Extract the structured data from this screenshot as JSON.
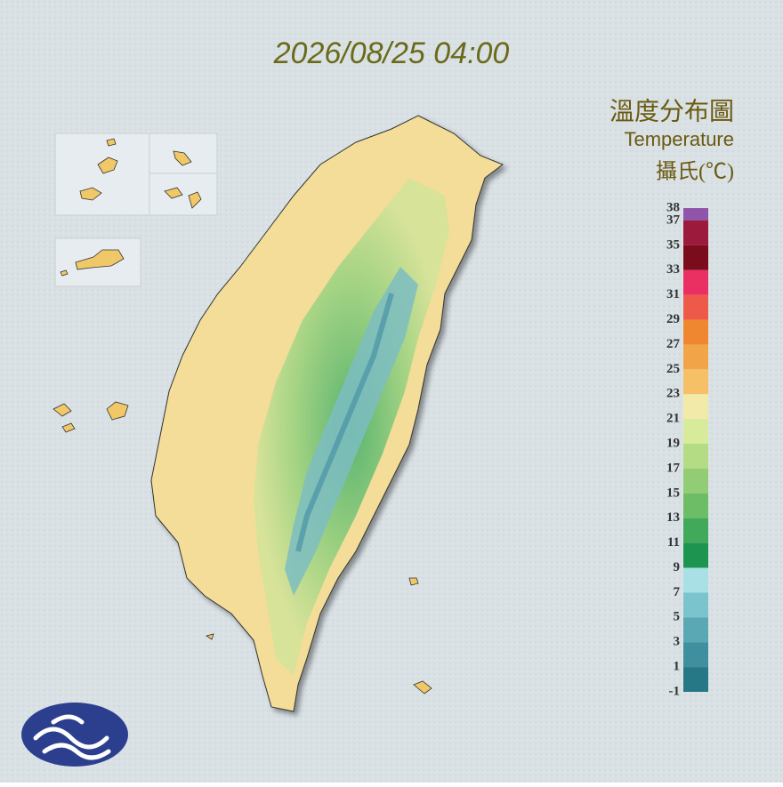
{
  "title": "2026/08/25 04:00",
  "legend": {
    "title": "溫度分布圖",
    "subtitle": "Temperature",
    "unit": "攝氏(℃)",
    "ticks": [
      38,
      37,
      35,
      33,
      31,
      29,
      27,
      25,
      23,
      21,
      19,
      17,
      15,
      13,
      11,
      9,
      7,
      5,
      3,
      1,
      -1
    ],
    "colors": [
      "#8e55a8",
      "#9c1a3c",
      "#7a0c1c",
      "#ea2f62",
      "#ee5a4a",
      "#ee8730",
      "#f2a448",
      "#f5c066",
      "#f2eaa8",
      "#d7eb9a",
      "#b4dc84",
      "#92cc74",
      "#6cbd66",
      "#40a95a",
      "#1d9551",
      "#a8e0e6",
      "#7cc4cd",
      "#5aa8b4",
      "#3f8f9e",
      "#267886"
    ]
  }
}
